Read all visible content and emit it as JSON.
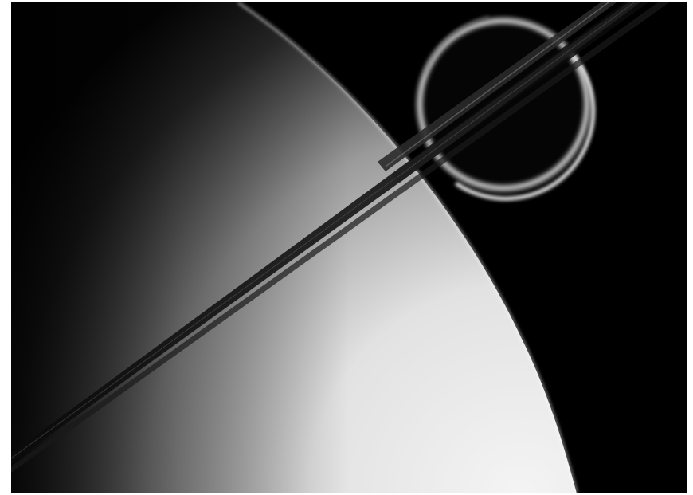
{
  "image": {
    "subject": "saturn-limb-with-rings-and-moon",
    "colors": {
      "space": "#000000",
      "planet_light": "#f2f2f2",
      "planet_dark": "#2a2a2a",
      "rings": "#1a1a1a",
      "moon_glow": "#e6e6e6"
    }
  }
}
